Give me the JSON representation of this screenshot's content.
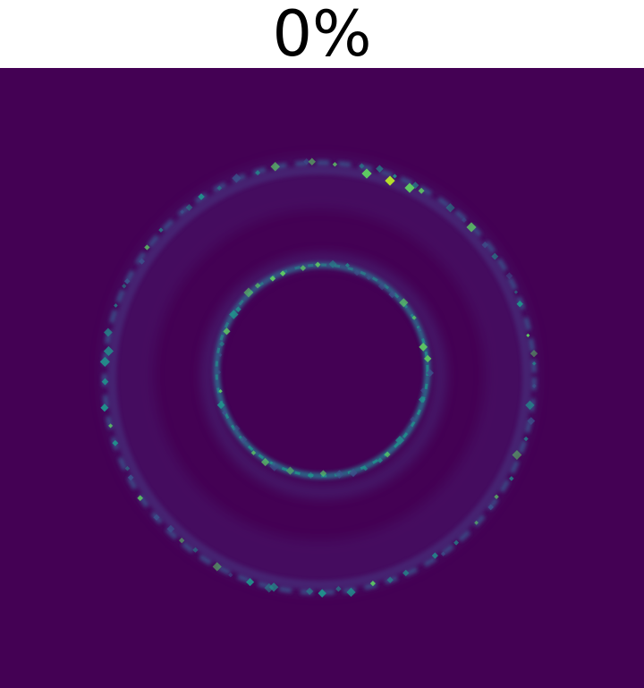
{
  "title": "0%",
  "heatmap": {
    "colormap": "viridis",
    "background_color": "#440154",
    "ring_color": "#3b528b",
    "highlight_color": "#21918c",
    "peak_color": "#5ec962",
    "max_color": "#b5de2b"
  }
}
